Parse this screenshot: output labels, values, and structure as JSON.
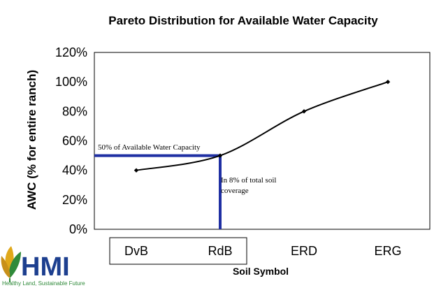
{
  "chart_data": {
    "type": "line",
    "title": "Pareto Distribution for Available Water Capacity",
    "xlabel": "Soil Symbol",
    "ylabel": "AWC (% for entire ranch)",
    "categories": [
      "DvB",
      "RdB",
      "ERD",
      "ERG"
    ],
    "values": [
      40,
      50,
      80,
      100
    ],
    "ylim": [
      0,
      120
    ],
    "yticks": [
      "0%",
      "20%",
      "40%",
      "60%",
      "80%",
      "100%",
      "120%"
    ],
    "grid": false,
    "annotations": [
      {
        "text": "50% of Available Water Capacity",
        "y": 50
      },
      {
        "text_lines": [
          "In 8% of total soil",
          "coverage"
        ],
        "x": "RdB"
      }
    ],
    "highlighted_categories": [
      "DvB",
      "RdB"
    ]
  },
  "logo": {
    "name": "HMI",
    "tagline": "Healthy Land, Sustainable Future"
  },
  "colors": {
    "line": "#000000",
    "annotation_line": "#1f2fa3",
    "logo_blue": "#1d3f8f",
    "logo_green": "#2f8a3a",
    "logo_yellow": "#e0a81a"
  }
}
